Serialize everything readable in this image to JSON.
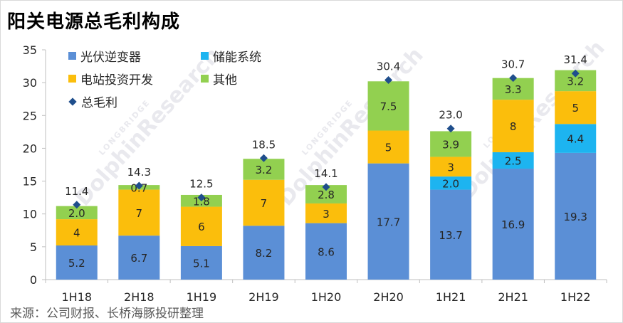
{
  "title": "阳关电源总毛利构成",
  "source": "来源：公司财报、长桥海豚投研整理",
  "watermark": {
    "brand": "LONGBRIDGE",
    "name": "DolphinResearch"
  },
  "colors": {
    "pv_inverter": "#5b8fd6",
    "energy_storage": "#1db4f0",
    "power_station": "#fbbe0c",
    "other": "#92d050",
    "total": "#1f4e8c"
  },
  "chart_data": {
    "type": "bar",
    "stacked": true,
    "title": "阳关电源总毛利构成",
    "categories": [
      "1H18",
      "2H18",
      "1H19",
      "2H19",
      "1H20",
      "2H20",
      "1H21",
      "2H21",
      "1H22"
    ],
    "series": [
      {
        "name": "光伏逆变器",
        "color_key": "pv_inverter",
        "values": [
          5.2,
          6.7,
          5.1,
          8.2,
          8.6,
          17.7,
          13.7,
          16.9,
          19.3
        ],
        "labels": [
          "5.2",
          "6.7",
          "5.1",
          "8.2",
          "8.6",
          "17.7",
          "13.7",
          "16.9",
          "19.3"
        ]
      },
      {
        "name": "储能系统",
        "color_key": "energy_storage",
        "values": [
          0,
          0,
          0,
          0,
          0,
          0,
          2.0,
          2.5,
          4.4
        ],
        "labels": [
          "",
          "",
          "",
          "",
          "",
          "",
          "2.0",
          "2.5",
          "4.4"
        ]
      },
      {
        "name": "电站投资开发",
        "color_key": "power_station",
        "values": [
          4,
          7,
          6,
          7,
          3,
          5,
          3,
          8,
          5
        ],
        "labels": [
          "4",
          "7",
          "6",
          "7",
          "3",
          "5",
          "3",
          "8",
          "5"
        ]
      },
      {
        "name": "其他",
        "color_key": "other",
        "values": [
          2.0,
          0.7,
          1.8,
          3.2,
          2.8,
          7.5,
          3.9,
          3.3,
          3.2
        ],
        "labels": [
          "2.0",
          "0.7",
          "1.8",
          "3.2",
          "2.8",
          "7.5",
          "3.9",
          "3.3",
          "3.2"
        ]
      }
    ],
    "total": {
      "name": "总毛利",
      "color_key": "total",
      "values": [
        11.4,
        14.3,
        12.5,
        18.5,
        14.1,
        30.4,
        23.0,
        30.7,
        31.4
      ],
      "labels": [
        "11.4",
        "14.3",
        "12.5",
        "18.5",
        "14.1",
        "30.4",
        "23.0",
        "30.7",
        "31.4"
      ]
    },
    "ylim": [
      0,
      35
    ],
    "yticks": [
      0,
      5,
      10,
      15,
      20,
      25,
      30,
      35
    ],
    "grid": false,
    "legend_position": "top-left"
  }
}
